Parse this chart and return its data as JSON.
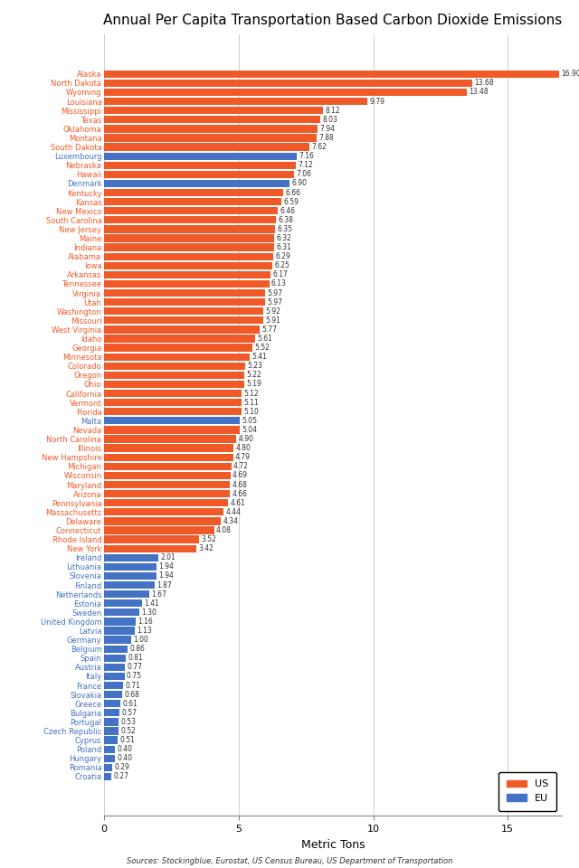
{
  "title": "Annual Per Capita Transportation Based Carbon Dioxide Emissions",
  "xlabel": "Metric Tons",
  "source": "Sources: Stockingblue, Eurostat, US Census Bureau, US Department of Transportation",
  "categories": [
    "Alaska",
    "North Dakota",
    "Wyoming",
    "Louisiana",
    "Mississippi",
    "Texas",
    "Oklahoma",
    "Montana",
    "South Dakota",
    "Luxembourg",
    "Nebraska",
    "Hawaii",
    "Denmark",
    "Kentucky",
    "Kansas",
    "New Mexico",
    "South Carolina",
    "New Jersey",
    "Maine",
    "Indiana",
    "Alabama",
    "Iowa",
    "Arkansas",
    "Tennessee",
    "Virginia",
    "Utah",
    "Washington",
    "Missouri",
    "West Virginia",
    "Idaho",
    "Georgia",
    "Minnesota",
    "Colorado",
    "Oregon",
    "Ohio",
    "California",
    "Vermont",
    "Florida",
    "Malta",
    "Nevada",
    "North Carolina",
    "Illinois",
    "New Hampshire",
    "Michigan",
    "Wisconsin",
    "Maryland",
    "Arizona",
    "Pennsylvania",
    "Massachusetts",
    "Delaware",
    "Connecticut",
    "Rhode Island",
    "New York",
    "Ireland",
    "Lithuania",
    "Slovenia",
    "Finland",
    "Netherlands",
    "Estonia",
    "Sweden",
    "United Kingdom",
    "Latvia",
    "Germany",
    "Belgium",
    "Spain",
    "Austria",
    "Italy",
    "France",
    "Slovakia",
    "Greece",
    "Bulgaria",
    "Portugal",
    "Czech Republic",
    "Cyprus",
    "Poland",
    "Hungary",
    "Romania",
    "Croatia"
  ],
  "values": [
    16.9,
    13.68,
    13.48,
    9.79,
    8.12,
    8.03,
    7.94,
    7.88,
    7.62,
    7.16,
    7.12,
    7.06,
    6.9,
    6.66,
    6.59,
    6.46,
    6.38,
    6.35,
    6.32,
    6.31,
    6.29,
    6.25,
    6.17,
    6.13,
    5.97,
    5.97,
    5.92,
    5.91,
    5.77,
    5.61,
    5.52,
    5.41,
    5.23,
    5.22,
    5.19,
    5.12,
    5.11,
    5.1,
    5.05,
    5.04,
    4.9,
    4.8,
    4.79,
    4.72,
    4.69,
    4.68,
    4.66,
    4.61,
    4.44,
    4.34,
    4.08,
    3.52,
    3.42,
    2.01,
    1.94,
    1.94,
    1.87,
    1.67,
    1.41,
    1.3,
    1.16,
    1.13,
    1.0,
    0.86,
    0.81,
    0.77,
    0.75,
    0.71,
    0.68,
    0.61,
    0.57,
    0.53,
    0.52,
    0.51,
    0.4,
    0.4,
    0.29,
    0.27
  ],
  "colors": [
    "US",
    "US",
    "US",
    "US",
    "US",
    "US",
    "US",
    "US",
    "US",
    "EU",
    "US",
    "US",
    "EU",
    "US",
    "US",
    "US",
    "US",
    "US",
    "US",
    "US",
    "US",
    "US",
    "US",
    "US",
    "US",
    "US",
    "US",
    "US",
    "US",
    "US",
    "US",
    "US",
    "US",
    "US",
    "US",
    "US",
    "US",
    "US",
    "EU",
    "US",
    "US",
    "US",
    "US",
    "US",
    "US",
    "US",
    "US",
    "US",
    "US",
    "US",
    "US",
    "US",
    "US",
    "EU",
    "EU",
    "EU",
    "EU",
    "EU",
    "EU",
    "EU",
    "EU",
    "EU",
    "EU",
    "EU",
    "EU",
    "EU",
    "EU",
    "EU",
    "EU",
    "EU",
    "EU",
    "EU",
    "EU",
    "EU",
    "EU",
    "EU",
    "EU",
    "EU"
  ],
  "us_color": "#F05A28",
  "eu_color": "#4472C4",
  "bg_color": "#FFFFFF",
  "grid_color": "#BBBBBB",
  "label_color_us": "#F05A28",
  "label_color_eu": "#4472C4",
  "xlim": [
    0,
    17
  ],
  "xticks": [
    0,
    5,
    10,
    15
  ],
  "bar_height": 0.82,
  "label_fontsize": 6.0,
  "value_fontsize": 5.5,
  "title_fontsize": 11,
  "xlabel_fontsize": 9,
  "legend_fontsize": 8
}
